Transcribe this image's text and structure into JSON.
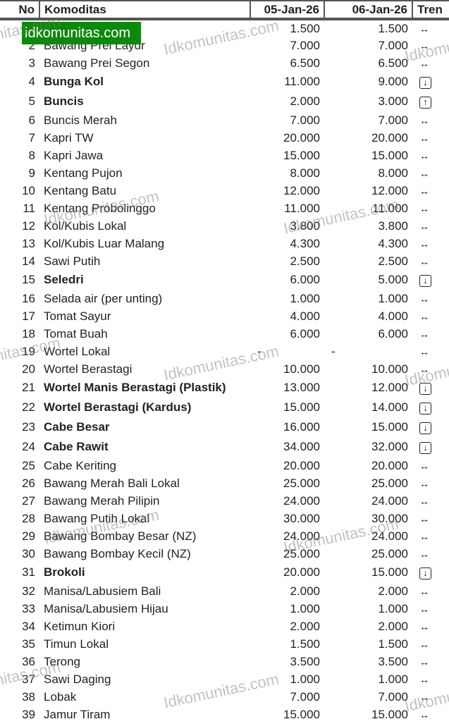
{
  "headers": {
    "no": "No",
    "name": "Komoditas",
    "d1": "05-Jan-26",
    "d2": "06-Jan-26",
    "trend": "Tren"
  },
  "logo": "idkomunitas.com",
  "watermark": "Idkomunitas.com",
  "rows": [
    {
      "no": "",
      "name": "",
      "d1": "1.500",
      "d2": "1.500",
      "t": "eq"
    },
    {
      "no": "2",
      "name": "Bawang Prei Layur",
      "d1": "7.000",
      "d2": "7.000",
      "t": "eq"
    },
    {
      "no": "3",
      "name": "Bawang Prei Segon",
      "d1": "6.500",
      "d2": "6.500",
      "t": "eq"
    },
    {
      "no": "4",
      "name": "Bunga Kol",
      "d1": "11.000",
      "d2": "9.000",
      "t": "down"
    },
    {
      "no": "5",
      "name": "Buncis",
      "d1": "2.000",
      "d2": "3.000",
      "t": "up"
    },
    {
      "no": "6",
      "name": "Buncis Merah",
      "d1": "7.000",
      "d2": "7.000",
      "t": "eq"
    },
    {
      "no": "7",
      "name": "Kapri TW",
      "d1": "20.000",
      "d2": "20.000",
      "t": "eq"
    },
    {
      "no": "8",
      "name": "Kapri Jawa",
      "d1": "15.000",
      "d2": "15.000",
      "t": "eq"
    },
    {
      "no": "9",
      "name": "Kentang Pujon",
      "d1": "8.000",
      "d2": "8.000",
      "t": "eq"
    },
    {
      "no": "10",
      "name": "Kentang Batu",
      "d1": "12.000",
      "d2": "12.000",
      "t": "eq"
    },
    {
      "no": "11",
      "name": "Kentang Probolinggo",
      "d1": "11.000",
      "d2": "11.000",
      "t": "eq"
    },
    {
      "no": "12",
      "name": "Kol/Kubis Lokal",
      "d1": "3.800",
      "d2": "3.800",
      "t": "eq"
    },
    {
      "no": "13",
      "name": "Kol/Kubis Luar Malang",
      "d1": "4.300",
      "d2": "4.300",
      "t": "eq"
    },
    {
      "no": "14",
      "name": "Sawi Putih",
      "d1": "2.500",
      "d2": "2.500",
      "t": "eq"
    },
    {
      "no": "15",
      "name": "Seledri",
      "d1": "6.000",
      "d2": "5.000",
      "t": "down"
    },
    {
      "no": "16",
      "name": "Selada air (per unting)",
      "d1": "1.000",
      "d2": "1.000",
      "t": "eq"
    },
    {
      "no": "17",
      "name": "Tomat Sayur",
      "d1": "4.000",
      "d2": "4.000",
      "t": "eq"
    },
    {
      "no": "18",
      "name": "Tomat Buah",
      "d1": "6.000",
      "d2": "6.000",
      "t": "eq"
    },
    {
      "no": "19",
      "name": "Wortel Lokal",
      "d1": "-",
      "d2": "-",
      "t": "eq"
    },
    {
      "no": "20",
      "name": "Wortel Berastagi",
      "d1": "10.000",
      "d2": "10.000",
      "t": "eq"
    },
    {
      "no": "21",
      "name": "Wortel Manis Berastagi (Plastik)",
      "d1": "13.000",
      "d2": "12.000",
      "t": "down"
    },
    {
      "no": "22",
      "name": "Wortel Berastagi (Kardus)",
      "d1": "15.000",
      "d2": "14.000",
      "t": "down"
    },
    {
      "no": "23",
      "name": "Cabe Besar",
      "d1": "16.000",
      "d2": "15.000",
      "t": "down"
    },
    {
      "no": "24",
      "name": "Cabe Rawit",
      "d1": "34.000",
      "d2": "32.000",
      "t": "down"
    },
    {
      "no": "25",
      "name": "Cabe Keriting",
      "d1": "20.000",
      "d2": "20.000",
      "t": "eq"
    },
    {
      "no": "26",
      "name": "Bawang Merah Bali Lokal",
      "d1": "25.000",
      "d2": "25.000",
      "t": "eq"
    },
    {
      "no": "27",
      "name": "Bawang Merah Pilipin",
      "d1": "24.000",
      "d2": "24.000",
      "t": "eq"
    },
    {
      "no": "28",
      "name": "Bawang Putih Lokal",
      "d1": "30.000",
      "d2": "30.000",
      "t": "eq"
    },
    {
      "no": "29",
      "name": "Bawang Bombay Besar (NZ)",
      "d1": "24.000",
      "d2": "24.000",
      "t": "eq"
    },
    {
      "no": "30",
      "name": "Bawang Bombay Kecil (NZ)",
      "d1": "25.000",
      "d2": "25.000",
      "t": "eq"
    },
    {
      "no": "31",
      "name": "Brokoli",
      "d1": "20.000",
      "d2": "15.000",
      "t": "down"
    },
    {
      "no": "32",
      "name": "Manisa/Labusiem Bali",
      "d1": "2.000",
      "d2": "2.000",
      "t": "eq"
    },
    {
      "no": "33",
      "name": "Manisa/Labusiem Hijau",
      "d1": "1.000",
      "d2": "1.000",
      "t": "eq"
    },
    {
      "no": "34",
      "name": "Ketimun Kiori",
      "d1": "2.000",
      "d2": "2.000",
      "t": "eq"
    },
    {
      "no": "35",
      "name": "Timun Lokal",
      "d1": "1.500",
      "d2": "1.500",
      "t": "eq"
    },
    {
      "no": "36",
      "name": "Terong",
      "d1": "3.500",
      "d2": "3.500",
      "t": "eq"
    },
    {
      "no": "37",
      "name": "Sawi Daging",
      "d1": "1.000",
      "d2": "1.000",
      "t": "eq"
    },
    {
      "no": "38",
      "name": "Lobak",
      "d1": "7.000",
      "d2": "7.000",
      "t": "eq"
    },
    {
      "no": "39",
      "name": "Jamur Tiram",
      "d1": "15.000",
      "d2": "15.000",
      "t": "eq"
    }
  ]
}
